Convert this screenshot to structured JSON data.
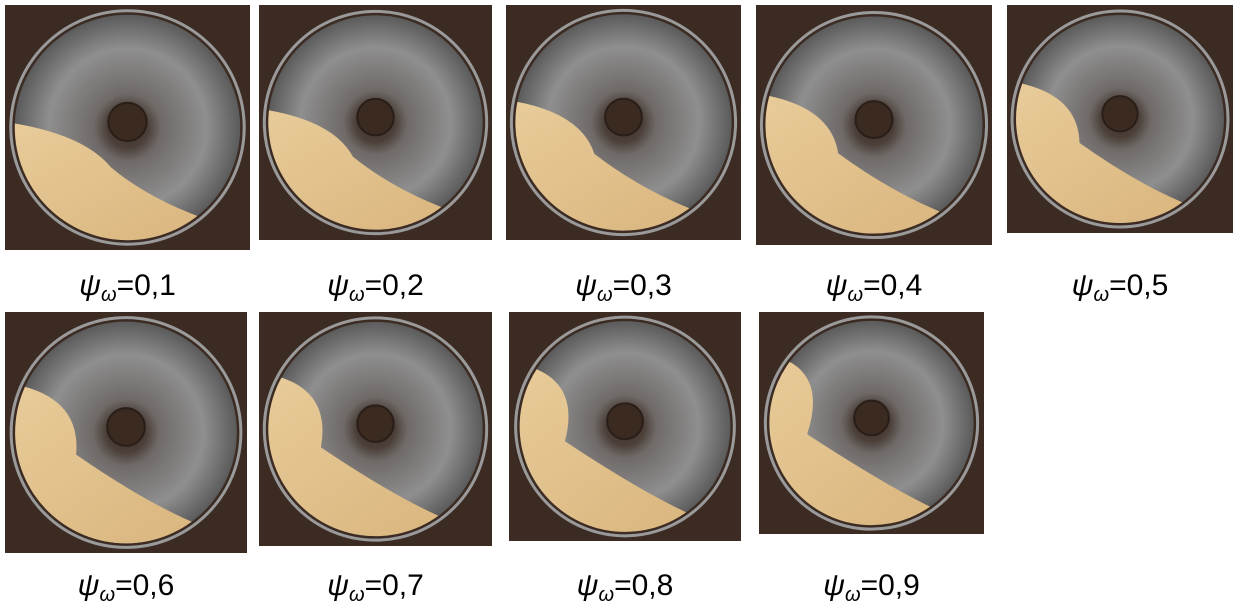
{
  "panels": [
    {
      "symbol": "ψ",
      "subscript": "ω",
      "value": "=0,1"
    },
    {
      "symbol": "ψ",
      "subscript": "ω",
      "value": "=0,2"
    },
    {
      "symbol": "ψ",
      "subscript": "ω",
      "value": "=0,3"
    },
    {
      "symbol": "ψ",
      "subscript": "ω",
      "value": "=0,4"
    },
    {
      "symbol": "ψ",
      "subscript": "ω",
      "value": "=0,5"
    },
    {
      "symbol": "ψ",
      "subscript": "ω",
      "value": "=0,6"
    },
    {
      "symbol": "ψ",
      "subscript": "ω",
      "value": "=0,7"
    },
    {
      "symbol": "ψ",
      "subscript": "ω",
      "value": "=0,8"
    },
    {
      "symbol": "ψ",
      "subscript": "ω",
      "value": "=0,9"
    }
  ]
}
